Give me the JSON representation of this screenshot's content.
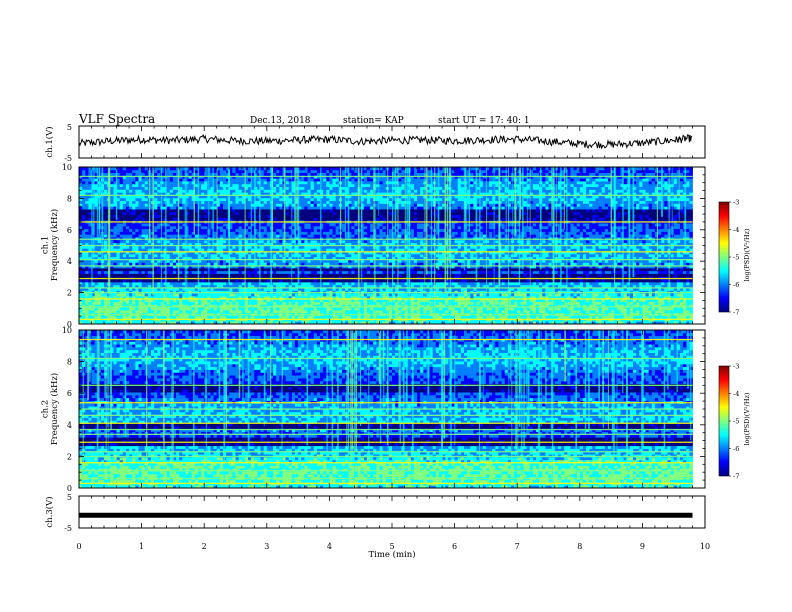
{
  "header": {
    "title": "VLF Spectra",
    "date": "Dec.13, 2018",
    "station": "station= KAP",
    "start": "start  UT =   17: 40: 1"
  },
  "colors": {
    "colormap": [
      "#00007f",
      "#0000ff",
      "#0080ff",
      "#00ffff",
      "#80ff80",
      "#ffff00",
      "#ff8000",
      "#ff0000",
      "#7f0000",
      "#ffffff"
    ],
    "trace": "#000000"
  },
  "chart_data": [
    {
      "type": "line",
      "panel": "ch.1",
      "ylabel": "ch.1(V)",
      "ylim": [
        -5,
        5
      ],
      "y_ticks": [
        "5",
        "-5"
      ],
      "x": [
        0.0,
        0.5,
        1.0,
        1.5,
        2.0,
        2.5,
        3.0,
        3.5,
        4.0,
        4.5,
        5.0,
        5.5,
        6.0,
        6.5,
        7.0,
        7.5,
        8.0,
        8.5,
        9.0,
        9.5,
        9.8
      ],
      "y": [
        -0.5,
        0.3,
        0.8,
        0.5,
        1.0,
        0.4,
        0.3,
        0.6,
        0.8,
        0.2,
        0.5,
        0.6,
        0.4,
        0.7,
        0.9,
        0.2,
        -0.6,
        -0.8,
        -0.3,
        0.6,
        1.2
      ],
      "series": [
        {
          "values": [
            -0.5,
            0.3,
            0.8,
            0.5,
            1.0,
            0.4,
            0.3,
            0.6,
            0.8,
            0.2,
            0.5,
            0.6,
            0.4,
            0.7,
            0.9,
            0.2,
            -0.6,
            -0.8,
            -0.3,
            0.6,
            1.2
          ]
        }
      ]
    },
    {
      "type": "heatmap",
      "panel": "ch.1",
      "ylabel": "ch.1\nFrequency (kHz)",
      "ylim": [
        0,
        10
      ],
      "y_ticks": [
        "0",
        "2",
        "4",
        "6",
        "8",
        "10"
      ],
      "colorbar": {
        "label": "log(PSD)(V²/Hz)",
        "range": [
          -7,
          -3
        ],
        "ticks": [
          "-3",
          "-4",
          "-5",
          "-6",
          "-7"
        ]
      },
      "noise_lines_khz": [
        0.3,
        0.6,
        1.1,
        1.6,
        2.0,
        2.3,
        2.9,
        3.7,
        4.1,
        4.6,
        5.0,
        5.4,
        6.5,
        8.2,
        9.4
      ],
      "dark_bands_khz": [
        [
          2.6,
          3.2
        ],
        [
          3.4,
          3.6
        ],
        [
          6.6,
          7.4
        ]
      ]
    },
    {
      "type": "heatmap",
      "panel": "ch.2",
      "ylabel": "ch.2\nFrequency (kHz)",
      "ylim": [
        0,
        10
      ],
      "y_ticks": [
        "0",
        "2",
        "4",
        "6",
        "8",
        "10"
      ],
      "colorbar": {
        "label": "log(PSD)(V²/Hz)",
        "range": [
          -7,
          -3
        ],
        "ticks": [
          "-3",
          "-4",
          "-5",
          "-6",
          "-7"
        ]
      },
      "noise_lines_khz": [
        0.3,
        0.6,
        1.1,
        1.6,
        2.0,
        2.3,
        2.9,
        3.4,
        3.7,
        4.1,
        4.6,
        5.0,
        5.4,
        6.5,
        8.2,
        9.4
      ],
      "dark_bands_khz": [
        [
          2.6,
          3.2
        ],
        [
          3.8,
          4.1
        ],
        [
          6.0,
          6.6
        ]
      ]
    },
    {
      "type": "line",
      "panel": "ch.3",
      "ylabel": "ch.3(V)",
      "xlabel": "Time (min)",
      "xlim": [
        0,
        10
      ],
      "x_ticks": [
        "0",
        "1",
        "2",
        "3",
        "4",
        "5",
        "6",
        "7",
        "8",
        "9",
        "10"
      ],
      "ylim": [
        -5,
        5
      ],
      "y_ticks": [
        "5",
        "-5"
      ],
      "x": [
        0,
        9.8
      ],
      "y": [
        -1.0,
        -1.0
      ],
      "series": [
        {
          "values": [
            -1.0,
            -1.0
          ]
        }
      ]
    }
  ]
}
